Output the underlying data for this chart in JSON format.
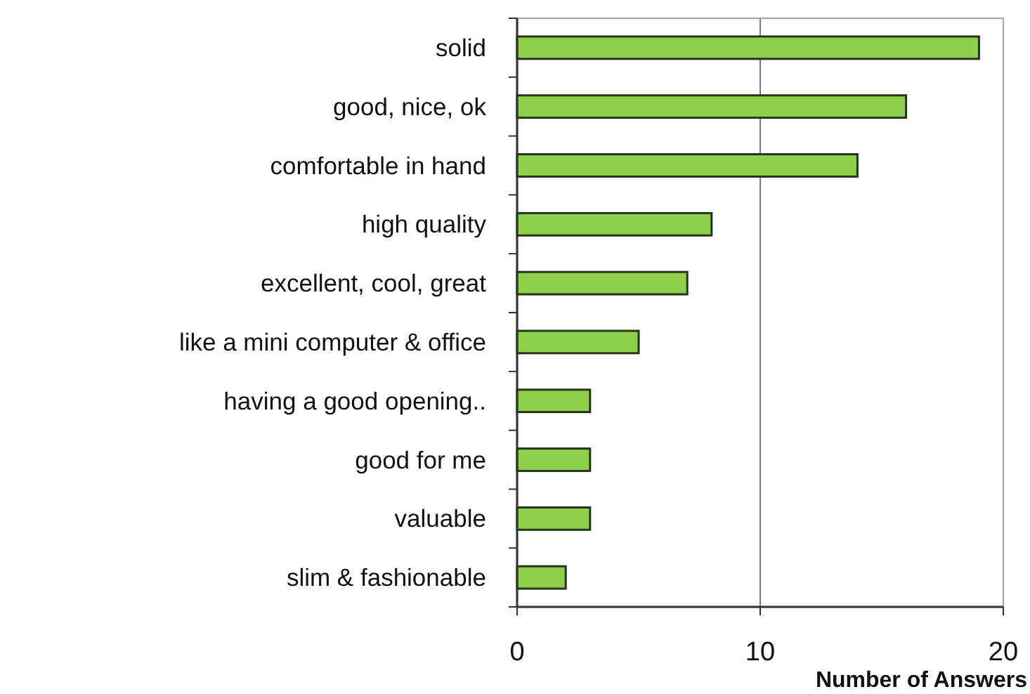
{
  "chart_data": {
    "type": "bar",
    "orientation": "horizontal",
    "xlabel": "Number of Answers",
    "categories": [
      "solid",
      "good, nice, ok",
      "comfortable in hand",
      "high quality",
      "excellent, cool, great",
      "like a mini computer & office",
      "having a good opening..",
      "good for me",
      "valuable",
      "slim & fashionable"
    ],
    "values": [
      19,
      16,
      14,
      8,
      7,
      5,
      3,
      3,
      3,
      2
    ],
    "color": "#8cd04c",
    "xlim": [
      0,
      20
    ],
    "xticks": [
      0,
      10,
      20
    ],
    "grid": "x"
  }
}
